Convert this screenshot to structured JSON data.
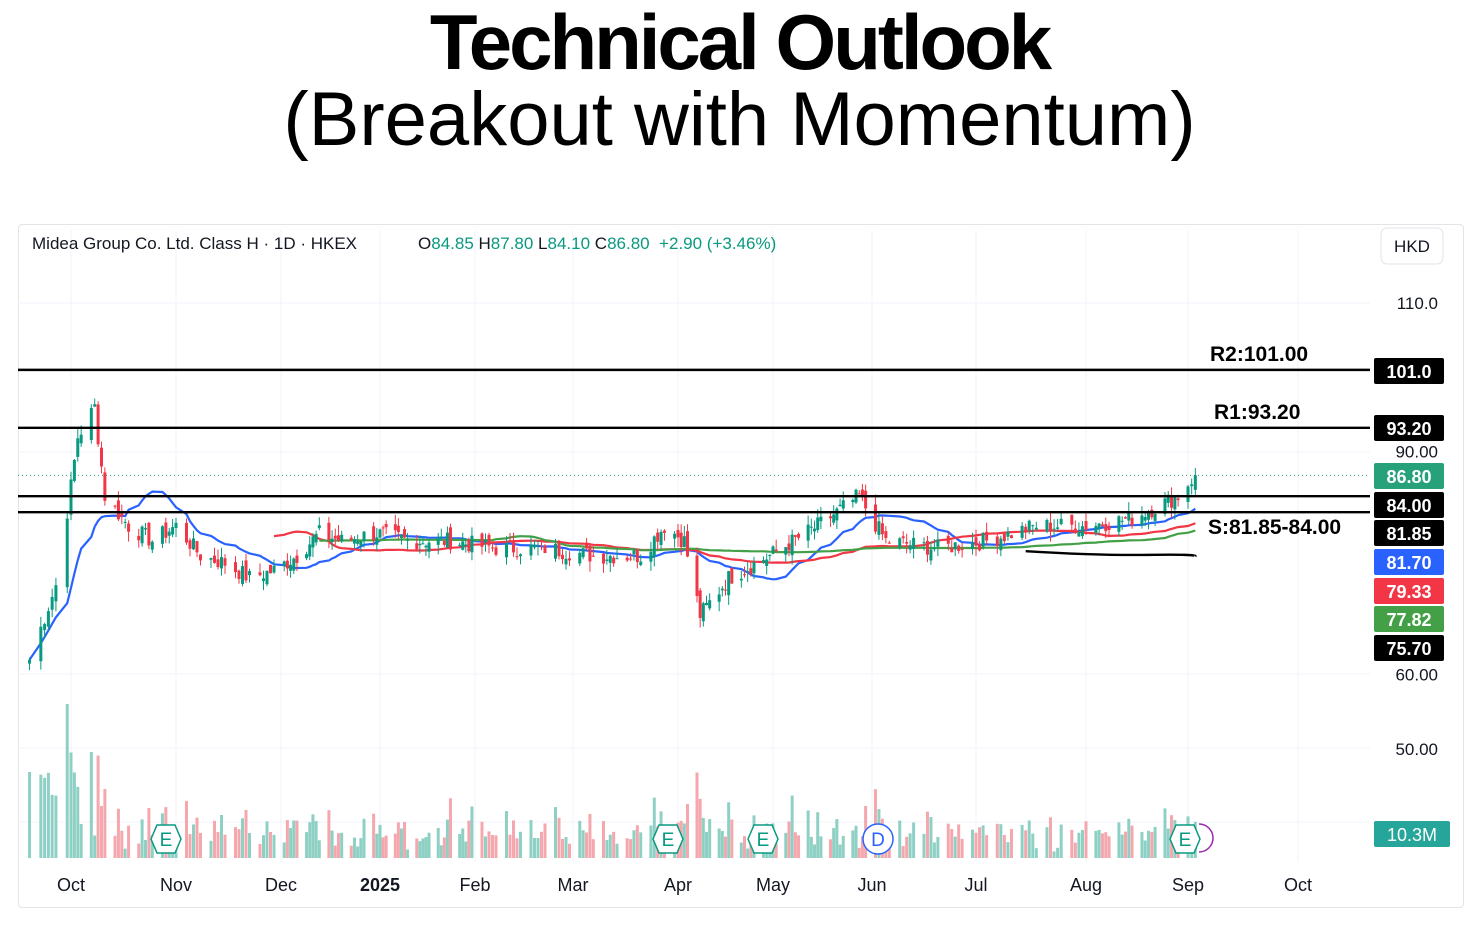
{
  "header": {
    "title": "Technical Outlook",
    "subtitle": "(Breakout with Momentum)"
  },
  "chart_data": {
    "type": "candlestick",
    "symbol_line": "Midea Group Co. Ltd. Class H · 1D · HKEX",
    "ohlc": {
      "o_label": "O",
      "o": "84.85",
      "h_label": "H",
      "h": "87.80",
      "l_label": "L",
      "l": "84.10",
      "c_label": "C",
      "c": "86.80",
      "change": "+2.90 (+3.46%)"
    },
    "currency": "HKD",
    "y_ticks": [
      "110.0",
      "90.00",
      "60.00",
      "50.00"
    ],
    "x_ticks": [
      "Oct",
      "Nov",
      "Dec",
      "2025",
      "Feb",
      "Mar",
      "Apr",
      "May",
      "Jun",
      "Jul",
      "Aug",
      "Sep",
      "Oct"
    ],
    "levels": [
      {
        "name": "R2",
        "value": 101.0,
        "label": "R2:101.00",
        "tag": "101.0"
      },
      {
        "name": "R1",
        "value": 93.2,
        "label": "R1:93.20",
        "tag": "93.20"
      },
      {
        "name": "S-upper",
        "value": 84.0,
        "label": "",
        "tag": "84.00"
      },
      {
        "name": "S-lower",
        "value": 81.85,
        "label": "S:81.85-84.00",
        "tag": "81.85"
      }
    ],
    "price_tags": [
      {
        "value": "86.80",
        "color": "#26a17a"
      },
      {
        "value": "81.70",
        "color": "#2962ff"
      },
      {
        "value": "79.33",
        "color": "#f23645"
      },
      {
        "value": "77.82",
        "color": "#43a047"
      },
      {
        "value": "75.70",
        "color": "#000000"
      },
      {
        "value": "10.3M",
        "color": "#26a69a"
      }
    ],
    "moving_averages": [
      {
        "color": "#2962ff",
        "last": 81.7
      },
      {
        "color": "#f23645",
        "last": 79.33
      },
      {
        "color": "#43a047",
        "last": 77.82
      },
      {
        "color": "#000000",
        "last": 75.7
      }
    ],
    "event_markers": [
      {
        "letter": "E",
        "month": "Nov"
      },
      {
        "letter": "E",
        "month": "Apr"
      },
      {
        "letter": "E",
        "month": "May"
      },
      {
        "letter": "D",
        "month": "Jun"
      },
      {
        "letter": "E",
        "month": "Sep"
      }
    ],
    "close_approx": [
      {
        "date": "2024-09-20",
        "close": 62
      },
      {
        "date": "2024-09-27",
        "close": 72
      },
      {
        "date": "2024-10-03",
        "close": 92
      },
      {
        "date": "2024-10-08",
        "close": 96
      },
      {
        "date": "2024-10-11",
        "close": 84
      },
      {
        "date": "2024-10-18",
        "close": 80
      },
      {
        "date": "2024-10-25",
        "close": 78
      },
      {
        "date": "2024-11-01",
        "close": 80
      },
      {
        "date": "2024-11-08",
        "close": 76
      },
      {
        "date": "2024-11-15",
        "close": 75
      },
      {
        "date": "2024-11-22",
        "close": 73
      },
      {
        "date": "2024-11-29",
        "close": 74
      },
      {
        "date": "2024-12-06",
        "close": 76
      },
      {
        "date": "2024-12-13",
        "close": 79
      },
      {
        "date": "2024-12-20",
        "close": 78
      },
      {
        "date": "2024-12-31",
        "close": 79
      },
      {
        "date": "2025-01-10",
        "close": 78
      },
      {
        "date": "2025-01-24",
        "close": 78
      },
      {
        "date": "2025-02-07",
        "close": 77
      },
      {
        "date": "2025-02-21",
        "close": 77
      },
      {
        "date": "2025-03-07",
        "close": 76
      },
      {
        "date": "2025-03-21",
        "close": 76
      },
      {
        "date": "2025-03-28",
        "close": 80
      },
      {
        "date": "2025-04-03",
        "close": 78
      },
      {
        "date": "2025-04-08",
        "close": 68
      },
      {
        "date": "2025-04-17",
        "close": 73
      },
      {
        "date": "2025-04-30",
        "close": 76
      },
      {
        "date": "2025-05-15",
        "close": 80
      },
      {
        "date": "2025-05-28",
        "close": 84
      },
      {
        "date": "2025-06-05",
        "close": 78
      },
      {
        "date": "2025-06-20",
        "close": 77
      },
      {
        "date": "2025-07-04",
        "close": 78
      },
      {
        "date": "2025-07-18",
        "close": 80
      },
      {
        "date": "2025-08-01",
        "close": 80
      },
      {
        "date": "2025-08-15",
        "close": 81
      },
      {
        "date": "2025-08-29",
        "close": 84
      },
      {
        "date": "2025-09-03",
        "close": 86.8
      }
    ]
  }
}
